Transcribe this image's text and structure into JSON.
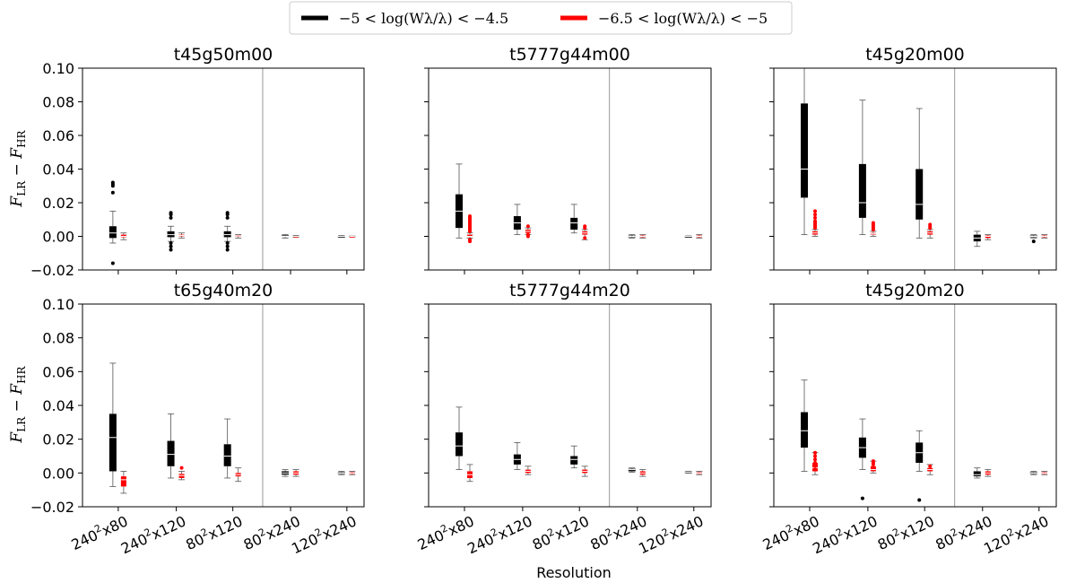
{
  "chart_data": {
    "type": "boxplot",
    "layout": "2x3 grid of panels",
    "ylim": [
      -0.02,
      0.1
    ],
    "yticks": [
      "0.10",
      "0.08",
      "0.06",
      "0.04",
      "0.02",
      "0.00",
      "−0.02"
    ],
    "ytick_values": [
      0.1,
      0.08,
      0.06,
      0.04,
      0.02,
      0.0,
      -0.02
    ],
    "ylabel": {
      "main": "F",
      "sub1": "LR",
      "minus": " − ",
      "main2": "F",
      "sub2": "HR"
    },
    "xlabel": "Resolution",
    "categories": [
      {
        "base": "240",
        "sup": "2",
        "rest": "x80"
      },
      {
        "base": "240",
        "sup": "2",
        "rest": "x120"
      },
      {
        "base": "80",
        "sup": "2",
        "rest": "x120"
      },
      {
        "base": "80",
        "sup": "2",
        "rest": "x240"
      },
      {
        "base": "120",
        "sup": "2",
        "rest": "x240"
      }
    ],
    "divider_after_category": 2,
    "legend": [
      {
        "label": "−5 < log(Wλ/λ) < −4.5",
        "color": "#000000"
      },
      {
        "label": "−6.5 < log(Wλ/λ) < −5",
        "color": "#ff0000"
      }
    ],
    "colors": {
      "black": "#000000",
      "red": "#ff0000",
      "divider": "#aaaaaa"
    },
    "panels": [
      {
        "title": "t45g50m00",
        "black": [
          {
            "whislo": -0.004,
            "q1": -0.001,
            "med": 0.002,
            "q3": 0.006,
            "whishi": 0.015,
            "fliers": [
              0.032,
              0.031,
              0.03,
              0.026,
              -0.016
            ]
          },
          {
            "whislo": -0.003,
            "q1": -0.0005,
            "med": 0.001,
            "q3": 0.003,
            "whishi": 0.006,
            "fliers": [
              0.014,
              0.013,
              0.011,
              -0.004,
              -0.006,
              -0.008
            ]
          },
          {
            "whislo": -0.003,
            "q1": -0.0005,
            "med": 0.001,
            "q3": 0.003,
            "whishi": 0.006,
            "fliers": [
              0.014,
              0.013,
              0.011,
              -0.004,
              -0.006,
              -0.008
            ]
          },
          {
            "whislo": -0.001,
            "q1": -0.0003,
            "med": 0.0,
            "q3": 0.0006,
            "whishi": 0.001,
            "fliers": []
          },
          {
            "whislo": -0.0005,
            "q1": -0.0002,
            "med": 0.0,
            "q3": 0.0002,
            "whishi": 0.0005,
            "fliers": []
          }
        ],
        "red": [
          {
            "whislo": -0.002,
            "q1": -0.0005,
            "med": 0.0,
            "q3": 0.001,
            "whishi": 0.002,
            "fliers": []
          },
          {
            "whislo": -0.001,
            "q1": 0.0,
            "med": 0.0005,
            "q3": 0.001,
            "whishi": 0.002,
            "fliers": []
          },
          {
            "whislo": -0.001,
            "q1": 0.0,
            "med": 0.0003,
            "q3": 0.0007,
            "whishi": 0.001,
            "fliers": []
          },
          {
            "whislo": -0.0005,
            "q1": -0.0002,
            "med": 0.0,
            "q3": 0.0002,
            "whishi": 0.0005,
            "fliers": []
          },
          {
            "whislo": -0.0002,
            "q1": -0.0001,
            "med": 0.0,
            "q3": 0.0001,
            "whishi": 0.0002,
            "fliers": []
          }
        ]
      },
      {
        "title": "t5777g44m00",
        "black": [
          {
            "whislo": -0.001,
            "q1": 0.005,
            "med": 0.015,
            "q3": 0.025,
            "whishi": 0.043,
            "fliers": []
          },
          {
            "whislo": 0.001,
            "q1": 0.004,
            "med": 0.008,
            "q3": 0.012,
            "whishi": 0.019,
            "fliers": []
          },
          {
            "whislo": 0.002,
            "q1": 0.004,
            "med": 0.008,
            "q3": 0.011,
            "whishi": 0.019,
            "fliers": []
          },
          {
            "whislo": -0.001,
            "q1": -0.0005,
            "med": 0.0,
            "q3": 0.0005,
            "whishi": 0.001,
            "fliers": []
          },
          {
            "whislo": -0.0003,
            "q1": -0.0001,
            "med": 0.0,
            "q3": 0.0001,
            "whishi": 0.0003,
            "fliers": []
          }
        ],
        "red": [
          {
            "whislo": -0.001,
            "q1": 0.0,
            "med": 0.0,
            "q3": 0.001,
            "whishi": 0.002,
            "fliers": [
              0.012,
              0.011,
              0.01,
              0.009,
              0.008,
              0.007,
              0.006,
              0.005,
              0.004,
              0.003,
              -0.002,
              -0.003
            ]
          },
          {
            "whislo": 0.001,
            "q1": 0.002,
            "med": 0.003,
            "q3": 0.004,
            "whishi": 0.005,
            "fliers": [
              0.006,
              0.001,
              0.0
            ]
          },
          {
            "whislo": -0.002,
            "q1": 0.001,
            "med": 0.002,
            "q3": 0.003,
            "whishi": 0.004,
            "fliers": [
              0.005,
              0.006,
              -0.001
            ]
          },
          {
            "whislo": -0.001,
            "q1": -0.0005,
            "med": 0.0,
            "q3": 0.0005,
            "whishi": 0.001,
            "fliers": []
          },
          {
            "whislo": -0.001,
            "q1": -0.0005,
            "med": 0.0,
            "q3": 0.0005,
            "whishi": 0.001,
            "fliers": []
          }
        ]
      },
      {
        "title": "t45g20m00",
        "black": [
          {
            "whislo": 0.001,
            "q1": 0.023,
            "med": 0.04,
            "q3": 0.079,
            "whishi": 0.1,
            "fliers": []
          },
          {
            "whislo": 0.001,
            "q1": 0.011,
            "med": 0.02,
            "q3": 0.043,
            "whishi": 0.081,
            "fliers": []
          },
          {
            "whislo": -0.001,
            "q1": 0.01,
            "med": 0.019,
            "q3": 0.04,
            "whishi": 0.076,
            "fliers": []
          },
          {
            "whislo": -0.006,
            "q1": -0.003,
            "med": -0.001,
            "q3": 0.001,
            "whishi": 0.003,
            "fliers": []
          },
          {
            "whislo": -0.001,
            "q1": -0.0005,
            "med": 0.0,
            "q3": 0.0005,
            "whishi": 0.001,
            "fliers": [
              -0.003
            ]
          }
        ],
        "red": [
          {
            "whislo": 0.0,
            "q1": 0.001,
            "med": 0.002,
            "q3": 0.003,
            "whishi": 0.004,
            "fliers": [
              0.015,
              0.013,
              0.011,
              0.009,
              0.008,
              0.007,
              0.006,
              0.005
            ]
          },
          {
            "whislo": 0.0,
            "q1": 0.001,
            "med": 0.0015,
            "q3": 0.002,
            "whishi": 0.003,
            "fliers": [
              0.008,
              0.007,
              0.006,
              0.005,
              0.004
            ]
          },
          {
            "whislo": -0.001,
            "q1": 0.001,
            "med": 0.002,
            "q3": 0.003,
            "whishi": 0.004,
            "fliers": [
              0.007,
              0.006,
              0.005
            ]
          },
          {
            "whislo": -0.002,
            "q1": -0.001,
            "med": 0.0,
            "q3": 0.0005,
            "whishi": 0.001,
            "fliers": []
          },
          {
            "whislo": -0.001,
            "q1": -0.0005,
            "med": 0.0,
            "q3": 0.0005,
            "whishi": 0.001,
            "fliers": []
          }
        ]
      },
      {
        "title": "t65g40m20",
        "black": [
          {
            "whislo": -0.008,
            "q1": 0.001,
            "med": 0.021,
            "q3": 0.035,
            "whishi": 0.065,
            "fliers": []
          },
          {
            "whislo": -0.003,
            "q1": 0.004,
            "med": 0.011,
            "q3": 0.019,
            "whishi": 0.035,
            "fliers": []
          },
          {
            "whislo": -0.003,
            "q1": 0.004,
            "med": 0.01,
            "q3": 0.017,
            "whishi": 0.032,
            "fliers": []
          },
          {
            "whislo": -0.002,
            "q1": -0.001,
            "med": 0.0,
            "q3": 0.001,
            "whishi": 0.002,
            "fliers": []
          },
          {
            "whislo": -0.001,
            "q1": -0.0005,
            "med": 0.0,
            "q3": 0.0005,
            "whishi": 0.001,
            "fliers": []
          }
        ],
        "red": [
          {
            "whislo": -0.012,
            "q1": -0.008,
            "med": -0.004,
            "q3": -0.002,
            "whishi": 0.001,
            "fliers": []
          },
          {
            "whislo": -0.004,
            "q1": -0.003,
            "med": -0.0015,
            "q3": -0.0005,
            "whishi": 0.001,
            "fliers": [
              0.003
            ]
          },
          {
            "whislo": -0.005,
            "q1": -0.002,
            "med": -0.001,
            "q3": 0.0,
            "whishi": 0.003,
            "fliers": []
          },
          {
            "whislo": -0.002,
            "q1": -0.001,
            "med": 0.0,
            "q3": 0.001,
            "whishi": 0.002,
            "fliers": []
          },
          {
            "whislo": -0.001,
            "q1": -0.0005,
            "med": 0.0,
            "q3": 0.0005,
            "whishi": 0.001,
            "fliers": []
          }
        ]
      },
      {
        "title": "t5777g44m20",
        "black": [
          {
            "whislo": 0.002,
            "q1": 0.01,
            "med": 0.016,
            "q3": 0.024,
            "whishi": 0.039,
            "fliers": []
          },
          {
            "whislo": 0.002,
            "q1": 0.005,
            "med": 0.008,
            "q3": 0.011,
            "whishi": 0.018,
            "fliers": []
          },
          {
            "whislo": 0.003,
            "q1": 0.005,
            "med": 0.008,
            "q3": 0.01,
            "whishi": 0.016,
            "fliers": []
          },
          {
            "whislo": 0.0005,
            "q1": 0.001,
            "med": 0.002,
            "q3": 0.0025,
            "whishi": 0.003,
            "fliers": []
          },
          {
            "whislo": 0.0,
            "q1": 0.0003,
            "med": 0.0005,
            "q3": 0.0008,
            "whishi": 0.001,
            "fliers": []
          }
        ],
        "red": [
          {
            "whislo": -0.005,
            "q1": -0.003,
            "med": -0.001,
            "q3": 0.001,
            "whishi": 0.005,
            "fliers": []
          },
          {
            "whislo": -0.001,
            "q1": 0.0,
            "med": 0.001,
            "q3": 0.002,
            "whishi": 0.004,
            "fliers": []
          },
          {
            "whislo": -0.002,
            "q1": 0.0,
            "med": 0.001,
            "q3": 0.002,
            "whishi": 0.004,
            "fliers": []
          },
          {
            "whislo": -0.002,
            "q1": -0.001,
            "med": 0.0,
            "q3": 0.001,
            "whishi": 0.002,
            "fliers": []
          },
          {
            "whislo": -0.001,
            "q1": -0.0005,
            "med": 0.0,
            "q3": 0.0005,
            "whishi": 0.001,
            "fliers": []
          }
        ]
      },
      {
        "title": "t45g20m20",
        "black": [
          {
            "whislo": 0.001,
            "q1": 0.015,
            "med": 0.025,
            "q3": 0.036,
            "whishi": 0.055,
            "fliers": []
          },
          {
            "whislo": 0.002,
            "q1": 0.009,
            "med": 0.015,
            "q3": 0.021,
            "whishi": 0.032,
            "fliers": [
              -0.015
            ]
          },
          {
            "whislo": 0.001,
            "q1": 0.006,
            "med": 0.012,
            "q3": 0.018,
            "whishi": 0.025,
            "fliers": [
              -0.016
            ]
          },
          {
            "whislo": -0.003,
            "q1": -0.002,
            "med": -0.001,
            "q3": 0.001,
            "whishi": 0.003,
            "fliers": []
          },
          {
            "whislo": -0.001,
            "q1": -0.0005,
            "med": 0.0,
            "q3": 0.0005,
            "whishi": 0.001,
            "fliers": []
          }
        ],
        "red": [
          {
            "whislo": -0.001,
            "q1": 0.001,
            "med": 0.003,
            "q3": 0.006,
            "whishi": 0.012,
            "fliers": [
              0.012,
              0.01,
              0.008,
              0.006,
              0.004,
              0.002
            ]
          },
          {
            "whislo": 0.0,
            "q1": 0.001,
            "med": 0.002,
            "q3": 0.004,
            "whishi": 0.007,
            "fliers": [
              0.007,
              0.006,
              0.005
            ]
          },
          {
            "whislo": -0.001,
            "q1": 0.001,
            "med": 0.002,
            "q3": 0.003,
            "whishi": 0.005,
            "fliers": [
              0.004
            ]
          },
          {
            "whislo": -0.002,
            "q1": -0.001,
            "med": 0.0,
            "q3": 0.001,
            "whishi": 0.002,
            "fliers": []
          },
          {
            "whislo": -0.001,
            "q1": -0.0005,
            "med": 0.0,
            "q3": 0.0005,
            "whishi": 0.001,
            "fliers": []
          }
        ]
      }
    ]
  }
}
